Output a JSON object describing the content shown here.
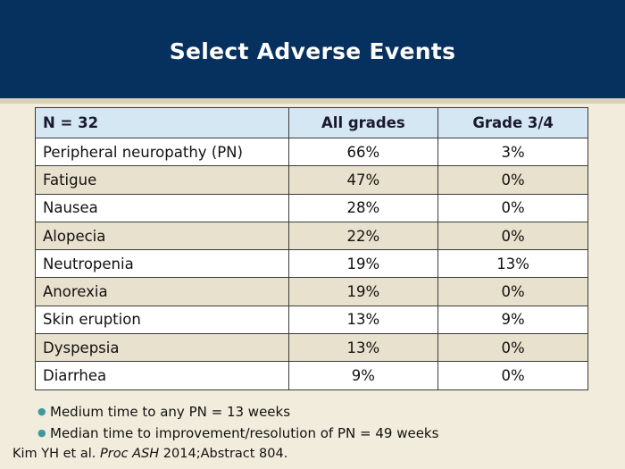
{
  "slide": {
    "title": "Select Adverse Events"
  },
  "table": {
    "headers": [
      "N = 32",
      "All grades",
      "Grade 3/4"
    ],
    "rows": [
      {
        "event": "Peripheral neuropathy (PN)",
        "all": "66%",
        "g34": "3%"
      },
      {
        "event": "Fatigue",
        "all": "47%",
        "g34": "0%"
      },
      {
        "event": "Nausea",
        "all": "28%",
        "g34": "0%"
      },
      {
        "event": "Alopecia",
        "all": "22%",
        "g34": "0%"
      },
      {
        "event": "Neutropenia",
        "all": "19%",
        "g34": "13%"
      },
      {
        "event": "Anorexia",
        "all": "19%",
        "g34": "0%"
      },
      {
        "event": "Skin eruption",
        "all": "13%",
        "g34": "9%"
      },
      {
        "event": "Dyspepsia",
        "all": "13%",
        "g34": "0%"
      },
      {
        "event": "Diarrhea",
        "all": "9%",
        "g34": "0%"
      }
    ]
  },
  "bullets": [
    "Medium time to any PN = 13 weeks",
    "Median time to improvement/resolution of PN = 49 weeks"
  ],
  "citation": {
    "prefix": "Kim YH et al. ",
    "journal": "Proc ASH",
    "suffix": " 2014;Abstract 804."
  },
  "colors": {
    "header_bg": "#06305e",
    "table_header_bg": "#d6e7f4",
    "row_alt_bg": "#e8e1cd",
    "bullet_color": "#3c9a9a"
  }
}
